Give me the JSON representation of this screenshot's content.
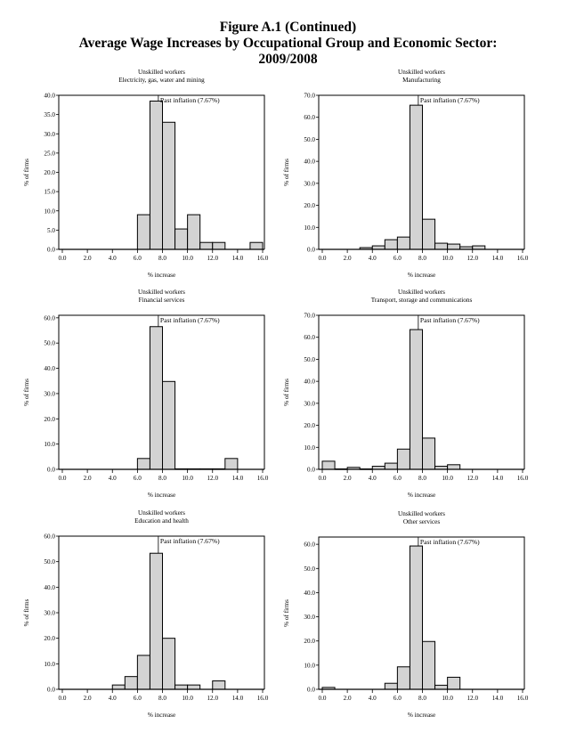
{
  "figure": {
    "title_line1": "Figure A.1 (Continued)",
    "title_line2": "Average Wage Increases by Occupational Group and Economic Sector:",
    "title_line3": "2009/2008"
  },
  "colors": {
    "bar_fill": "#d3d3d3",
    "bar_stroke": "#000000"
  },
  "chart_data": [
    {
      "type": "bar",
      "title": "Unskilled workers",
      "subtitle": "Electricity, gas, water and mining",
      "xlabel": "% increase",
      "ylabel": "% of firms",
      "xlim": [
        0,
        16
      ],
      "ylim": [
        0,
        40
      ],
      "x_ticks": [
        "0.0",
        "2.0",
        "4.0",
        "6.0",
        "8.0",
        "10.0",
        "12.0",
        "14.0",
        "16.0"
      ],
      "y_ticks": [
        "0.0",
        "5.0",
        "10.0",
        "15.0",
        "20.0",
        "25.0",
        "30.0",
        "35.0",
        "40.0"
      ],
      "y_tick_values": [
        0,
        5,
        10,
        15,
        20,
        25,
        30,
        35,
        40
      ],
      "annotation": {
        "label": "Past inflation (7.67%)",
        "x": 7.67
      },
      "bins": [
        [
          6,
          7
        ],
        [
          7,
          8
        ],
        [
          8,
          9
        ],
        [
          9,
          10
        ],
        [
          10,
          11
        ],
        [
          11,
          12
        ],
        [
          12,
          13
        ],
        [
          15,
          16
        ]
      ],
      "values": [
        9.0,
        38.5,
        33.0,
        5.3,
        9.0,
        1.8,
        1.8,
        1.8
      ]
    },
    {
      "type": "bar",
      "title": "Unskilled workers",
      "subtitle": "Manufacturing",
      "xlabel": "% increase",
      "ylabel": "% of firms",
      "xlim": [
        0,
        16
      ],
      "ylim": [
        0,
        70
      ],
      "x_ticks": [
        "0.0",
        "2.0",
        "4.0",
        "6.0",
        "8.0",
        "10.0",
        "12.0",
        "14.0",
        "16.0"
      ],
      "y_ticks": [
        "0.0",
        "10.0",
        "20.0",
        "30.0",
        "40.0",
        "50.0",
        "60.0",
        "70.0"
      ],
      "y_tick_values": [
        0,
        10,
        20,
        30,
        40,
        50,
        60,
        70
      ],
      "annotation": {
        "label": "Past inflation (7.67%)",
        "x": 7.67
      },
      "bins": [
        [
          3,
          4
        ],
        [
          4,
          5
        ],
        [
          5,
          6
        ],
        [
          6,
          7
        ],
        [
          7,
          8
        ],
        [
          8,
          9
        ],
        [
          9,
          10
        ],
        [
          10,
          11
        ],
        [
          11,
          12
        ],
        [
          12,
          13
        ]
      ],
      "values": [
        0.8,
        1.6,
        4.4,
        5.6,
        65.5,
        13.7,
        2.8,
        2.4,
        1.2,
        1.6
      ]
    },
    {
      "type": "bar",
      "title": "Unskilled workers",
      "subtitle": "Financial services",
      "xlabel": "% increase",
      "ylabel": "% of firms",
      "xlim": [
        0,
        16
      ],
      "ylim": [
        0,
        61
      ],
      "x_ticks": [
        "0.0",
        "2.0",
        "4.0",
        "6.0",
        "8.0",
        "10.0",
        "12.0",
        "14.0",
        "16.0"
      ],
      "y_ticks": [
        "0.0",
        "10.0",
        "20.0",
        "30.0",
        "40.0",
        "50.0",
        "60.0"
      ],
      "y_tick_values": [
        0,
        10,
        20,
        30,
        40,
        50,
        60
      ],
      "annotation": {
        "label": "Past inflation (7.67%)",
        "x": 7.67
      },
      "bins": [
        [
          6,
          7
        ],
        [
          7,
          8
        ],
        [
          8,
          9
        ],
        [
          9,
          10
        ],
        [
          10,
          11
        ],
        [
          11,
          12
        ],
        [
          12,
          13
        ],
        [
          13,
          14
        ]
      ],
      "values": [
        4.3,
        56.5,
        34.8,
        0.2,
        0.2,
        0.2,
        0.2,
        4.3
      ]
    },
    {
      "type": "bar",
      "title": "Unskilled workers",
      "subtitle": "Transport, storage and communications",
      "xlabel": "% increase",
      "ylabel": "% of firms",
      "xlim": [
        0,
        16
      ],
      "ylim": [
        0,
        70
      ],
      "x_ticks": [
        "0.0",
        "2.0",
        "4.0",
        "6.0",
        "8.0",
        "10.0",
        "12.0",
        "14.0",
        "16.0"
      ],
      "y_ticks": [
        "0.0",
        "10.0",
        "20.0",
        "30.0",
        "40.0",
        "50.0",
        "60.0",
        "70.0"
      ],
      "y_tick_values": [
        0,
        10,
        20,
        30,
        40,
        50,
        60,
        70
      ],
      "annotation": {
        "label": "Past inflation (7.67%)",
        "x": 7.67
      },
      "bins": [
        [
          0,
          1
        ],
        [
          1,
          2
        ],
        [
          2,
          3
        ],
        [
          3,
          4
        ],
        [
          4,
          5
        ],
        [
          5,
          6
        ],
        [
          6,
          7
        ],
        [
          7,
          8
        ],
        [
          8,
          9
        ],
        [
          9,
          10
        ],
        [
          10,
          11
        ]
      ],
      "values": [
        3.7,
        0.2,
        0.9,
        0.2,
        1.4,
        2.8,
        9.2,
        63.5,
        14.2,
        1.4,
        2.1
      ]
    },
    {
      "type": "bar",
      "title": "Unskilled workers",
      "subtitle": "Education and health",
      "xlabel": "% increase",
      "ylabel": "% of firms",
      "xlim": [
        0,
        16
      ],
      "ylim": [
        0,
        60
      ],
      "x_ticks": [
        "0.0",
        "2.0",
        "4.0",
        "6.0",
        "8.0",
        "10.0",
        "12.0",
        "14.0",
        "16.0"
      ],
      "y_ticks": [
        "0.0",
        "10.0",
        "20.0",
        "30.0",
        "40.0",
        "50.0",
        "60.0"
      ],
      "y_tick_values": [
        0,
        10,
        20,
        30,
        40,
        50,
        60
      ],
      "annotation": {
        "label": "Past inflation (7.67%)",
        "x": 7.67
      },
      "bins": [
        [
          4,
          5
        ],
        [
          5,
          6
        ],
        [
          6,
          7
        ],
        [
          7,
          8
        ],
        [
          8,
          9
        ],
        [
          9,
          10
        ],
        [
          10,
          11
        ],
        [
          12,
          13
        ]
      ],
      "values": [
        1.7,
        5.0,
        13.3,
        53.3,
        20.0,
        1.7,
        1.7,
        3.3
      ]
    },
    {
      "type": "bar",
      "title": "Unskilled workers",
      "subtitle": "Other services",
      "xlabel": "% increase",
      "ylabel": "% of firms",
      "xlim": [
        0,
        16
      ],
      "ylim": [
        0,
        63
      ],
      "x_ticks": [
        "0.0",
        "2.0",
        "4.0",
        "6.0",
        "8.0",
        "10.0",
        "12.0",
        "14.0",
        "16.0"
      ],
      "y_ticks": [
        "0.0",
        "10.0",
        "20.0",
        "30.0",
        "40.0",
        "50.0",
        "60.0"
      ],
      "y_tick_values": [
        0,
        10,
        20,
        30,
        40,
        50,
        60
      ],
      "annotation": {
        "label": "Past inflation (7.67%)",
        "x": 7.67
      },
      "bins": [
        [
          0,
          1
        ],
        [
          5,
          6
        ],
        [
          6,
          7
        ],
        [
          7,
          8
        ],
        [
          8,
          9
        ],
        [
          9,
          10
        ],
        [
          10,
          11
        ]
      ],
      "values": [
        0.8,
        2.5,
        9.3,
        59.3,
        19.8,
        1.7,
        5.0
      ]
    }
  ]
}
